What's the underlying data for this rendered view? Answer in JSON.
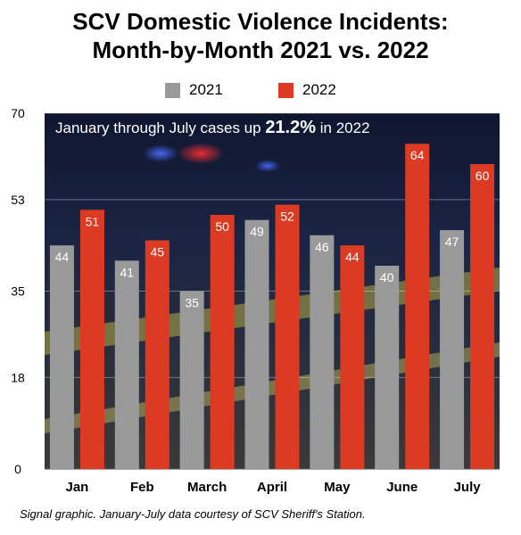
{
  "chart_data": {
    "type": "bar",
    "title": "SCV Domestic Violence Incidents:\nMonth-by-Month 2021 vs. 2022",
    "annotation": {
      "prefix": "January through July cases up ",
      "highlight": "21.2%",
      "suffix": " in 2022"
    },
    "categories": [
      "Jan",
      "Feb",
      "March",
      "April",
      "May",
      "June",
      "July"
    ],
    "series": [
      {
        "name": "2021",
        "color": "#9a9a9a",
        "values": [
          44,
          41,
          35,
          49,
          46,
          40,
          47
        ]
      },
      {
        "name": "2022",
        "color": "#dc3a22",
        "values": [
          51,
          45,
          50,
          52,
          44,
          64,
          60
        ]
      }
    ],
    "yticks": [
      0,
      18,
      35,
      53,
      70
    ],
    "ylim": [
      0,
      70
    ],
    "legend_position": "top-center",
    "grid": true
  },
  "footnote": "Signal graphic. January-July data courtesy of SCV Sheriff's Station."
}
